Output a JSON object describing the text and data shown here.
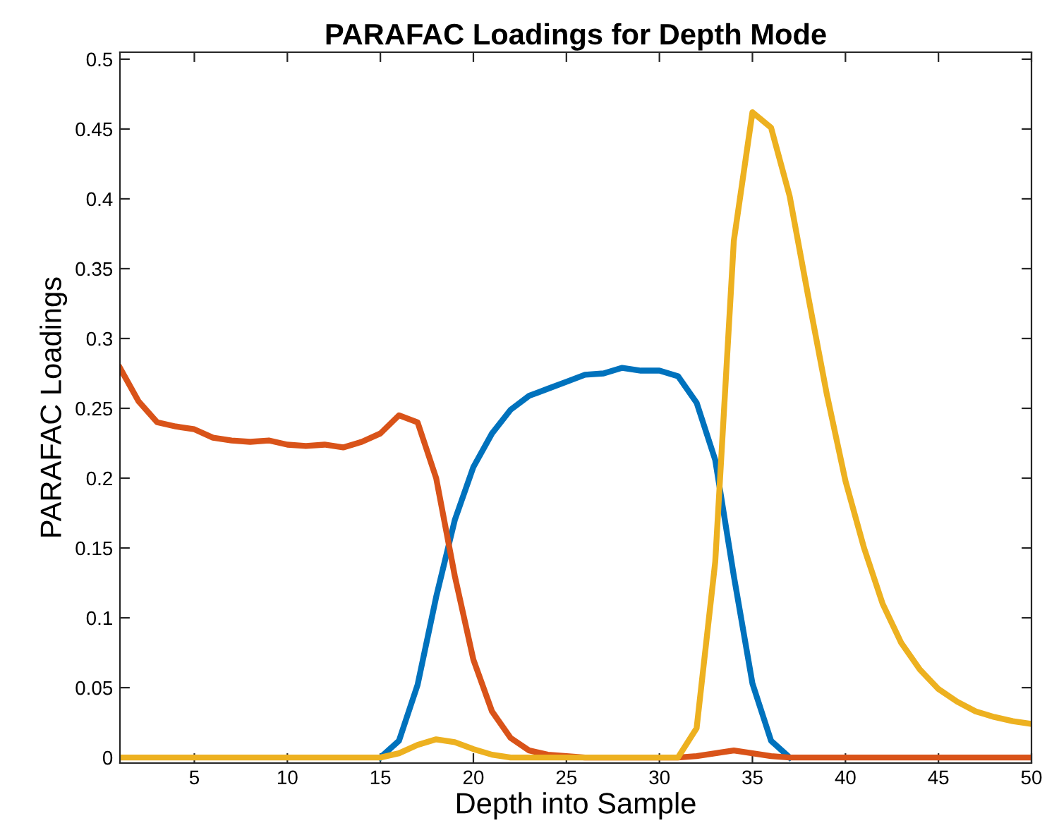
{
  "chart_data": {
    "type": "line",
    "title": "PARAFAC Loadings for Depth Mode",
    "xlabel": "Depth into Sample",
    "ylabel": "PARAFAC Loadings",
    "x": [
      1,
      2,
      3,
      4,
      5,
      6,
      7,
      8,
      9,
      10,
      11,
      12,
      13,
      14,
      15,
      16,
      17,
      18,
      19,
      20,
      21,
      22,
      23,
      24,
      25,
      26,
      27,
      28,
      29,
      30,
      31,
      32,
      33,
      34,
      35,
      36,
      37,
      38,
      39,
      40,
      41,
      42,
      43,
      44,
      45,
      46,
      47,
      48,
      49,
      50
    ],
    "series": [
      {
        "color": "#0072bd",
        "values": [
          null,
          null,
          null,
          null,
          null,
          null,
          null,
          null,
          null,
          null,
          null,
          null,
          null,
          null,
          0,
          0.012,
          0.052,
          0.115,
          0.17,
          0.208,
          0.232,
          0.249,
          0.259,
          0.264,
          0.269,
          0.274,
          0.275,
          0.279,
          0.277,
          0.277,
          0.273,
          0.254,
          0.213,
          0.13,
          0.053,
          0.012,
          0,
          null,
          null,
          null,
          null,
          null,
          null,
          null,
          null,
          null,
          null,
          null,
          null,
          null
        ]
      },
      {
        "color": "#d95319",
        "values": [
          0.279,
          0.255,
          0.24,
          0.237,
          0.235,
          0.229,
          0.227,
          0.226,
          0.227,
          0.224,
          0.223,
          0.224,
          0.222,
          0.226,
          0.232,
          0.245,
          0.24,
          0.2,
          0.13,
          0.07,
          0.033,
          0.014,
          0.005,
          0.002,
          0.001,
          0,
          0,
          0,
          0,
          0,
          0,
          0.001,
          0.003,
          0.005,
          0.003,
          0.001,
          0,
          0,
          0,
          0,
          0,
          0,
          0,
          0,
          0,
          0,
          0,
          0,
          0,
          0
        ]
      },
      {
        "color": "#edb120",
        "values": [
          0,
          0,
          0,
          0,
          0,
          0,
          0,
          0,
          0,
          0,
          0,
          0,
          0,
          0,
          0,
          0.003,
          0.009,
          0.013,
          0.011,
          0.006,
          0.002,
          0,
          0,
          0,
          0,
          0,
          0,
          0,
          0,
          0,
          0,
          0.021,
          0.14,
          0.37,
          0.462,
          0.451,
          0.402,
          0.33,
          0.26,
          0.198,
          0.15,
          0.11,
          0.082,
          0.063,
          0.049,
          0.04,
          0.033,
          0.029,
          0.026,
          0.024
        ]
      }
    ],
    "xlim": [
      1,
      50
    ],
    "xticks": [
      5,
      10,
      15,
      20,
      25,
      30,
      35,
      40,
      45,
      50
    ],
    "ylim": [
      -0.004,
      0.505
    ],
    "yticks": [
      0,
      0.05,
      0.1,
      0.15,
      0.2,
      0.25,
      0.3,
      0.35,
      0.4,
      0.45,
      0.5
    ],
    "grid": false,
    "marker": "none",
    "line_style": "solid"
  }
}
